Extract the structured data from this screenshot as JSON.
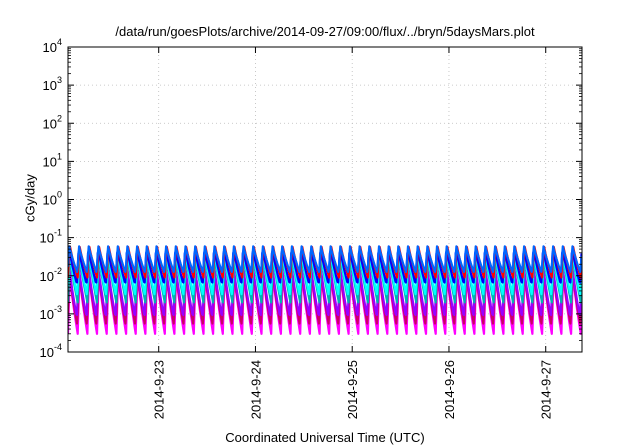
{
  "chart_data": {
    "type": "line",
    "title": "/data/run/goesPlots/archive/2014-09-27/09:00/flux/../bryn/5daysMars.plot",
    "xlabel": "Coordinated Universal Time (UTC)",
    "ylabel": "cGy/day",
    "yscale": "log",
    "ylim": [
      0.0001,
      10000
    ],
    "xlim": [
      "2014-09-22T01:30",
      "2014-09-27T09:00"
    ],
    "grid": true,
    "x_ticks": [
      "2014-9-23",
      "2014-9-24",
      "2014-9-25",
      "2014-9-26",
      "2014-9-27"
    ],
    "y_ticks": [
      {
        "base": "10",
        "exp": "-4"
      },
      {
        "base": "10",
        "exp": "-3"
      },
      {
        "base": "10",
        "exp": "-2"
      },
      {
        "base": "10",
        "exp": "-1"
      },
      {
        "base": "10",
        "exp": "0"
      },
      {
        "base": "10",
        "exp": "1"
      },
      {
        "base": "10",
        "exp": "2"
      },
      {
        "base": "10",
        "exp": "3"
      },
      {
        "base": "10",
        "exp": "4"
      }
    ],
    "oscillation": {
      "cycles_per_day": 10,
      "x_start": "2014-09-22T01:30",
      "x_end": "2014-09-27T09:00"
    },
    "series": [
      {
        "color": "#ff00ff",
        "peak": 0.011,
        "trough": 0.0003
      },
      {
        "color": "#cc0066",
        "peak": 0.014,
        "trough": 0.0005
      },
      {
        "color": "#9900ff",
        "peak": 0.02,
        "trough": 0.0008
      },
      {
        "color": "#00b3b3",
        "peak": 0.035,
        "trough": 0.002
      },
      {
        "color": "#00ffff",
        "peak": 0.045,
        "trough": 0.003
      },
      {
        "color": "#0000ff",
        "peak": 0.055,
        "trough": 0.006
      },
      {
        "color": "#ff0000",
        "peak": 0.065,
        "trough": 0.009
      },
      {
        "color": "#0066ff",
        "peak": 0.06,
        "trough": 0.012
      }
    ]
  }
}
